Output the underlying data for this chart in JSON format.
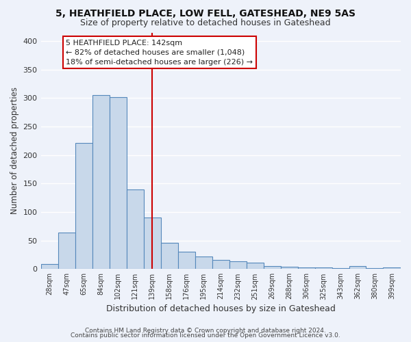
{
  "title": "5, HEATHFIELD PLACE, LOW FELL, GATESHEAD, NE9 5AS",
  "subtitle": "Size of property relative to detached houses in Gateshead",
  "xlabel": "Distribution of detached houses by size in Gateshead",
  "ylabel": "Number of detached properties",
  "bar_color": "#c8d8ea",
  "bar_edge_color": "#5588bb",
  "bg_color": "#eef2fa",
  "grid_color": "#ffffff",
  "vline_x": 139,
  "vline_color": "#cc0000",
  "categories": [
    "28sqm",
    "47sqm",
    "65sqm",
    "84sqm",
    "102sqm",
    "121sqm",
    "139sqm",
    "158sqm",
    "176sqm",
    "195sqm",
    "214sqm",
    "232sqm",
    "251sqm",
    "269sqm",
    "288sqm",
    "306sqm",
    "325sqm",
    "343sqm",
    "362sqm",
    "380sqm",
    "399sqm"
  ],
  "bin_edges": [
    18.5,
    37.5,
    56.0,
    74.5,
    93.0,
    111.5,
    130.0,
    148.5,
    167.0,
    185.5,
    204.5,
    223.0,
    241.5,
    260.0,
    278.5,
    297.0,
    315.5,
    334.0,
    352.5,
    371.0,
    389.5,
    408.5
  ],
  "values": [
    9,
    64,
    221,
    305,
    302,
    139,
    90,
    46,
    30,
    22,
    16,
    14,
    11,
    5,
    4,
    3,
    3,
    2,
    5,
    2,
    3
  ],
  "annotation_title": "5 HEATHFIELD PLACE: 142sqm",
  "annotation_line1": "← 82% of detached houses are smaller (1,048)",
  "annotation_line2": "18% of semi-detached houses are larger (226) →",
  "annotation_box_color": "#ffffff",
  "annotation_box_edge": "#cc0000",
  "ylim": [
    0,
    415
  ],
  "yticks": [
    0,
    50,
    100,
    150,
    200,
    250,
    300,
    350,
    400
  ],
  "footer1": "Contains HM Land Registry data © Crown copyright and database right 2024.",
  "footer2": "Contains public sector information licensed under the Open Government Licence v3.0."
}
